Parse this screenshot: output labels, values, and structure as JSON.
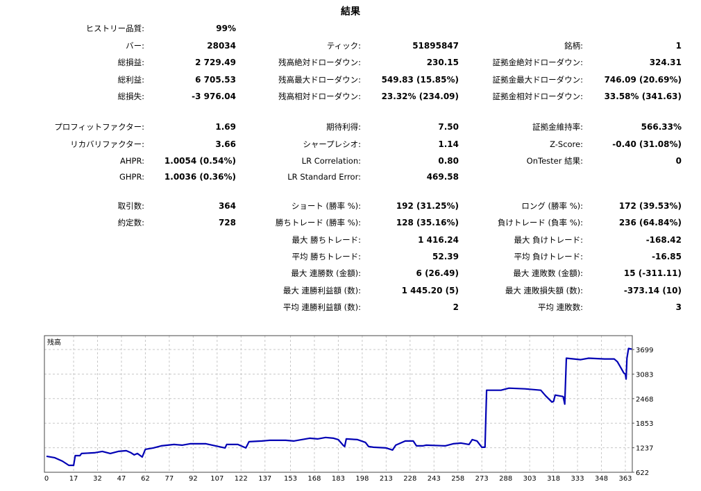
{
  "title": "結果",
  "stats": {
    "rows": [
      [
        [
          "ヒストリー品質:",
          "99%"
        ],
        null,
        null
      ],
      [
        [
          "バー:",
          "28034"
        ],
        [
          "ティック:",
          "51895847"
        ],
        [
          "銘柄:",
          "1"
        ]
      ],
      [
        [
          "総損益:",
          "2 729.49"
        ],
        [
          "残高絶対ドローダウン:",
          "230.15"
        ],
        [
          "証拠金絶対ドローダウン:",
          "324.31"
        ]
      ],
      [
        [
          "総利益:",
          "6 705.53"
        ],
        [
          "残高最大ドローダウン:",
          "549.83 (15.85%)"
        ],
        [
          "証拠金最大ドローダウン:",
          "746.09 (20.69%)"
        ]
      ],
      [
        [
          "総損失:",
          "-3 976.04"
        ],
        [
          "残高相対ドローダウン:",
          "23.32% (234.09)"
        ],
        [
          "証拠金相対ドローダウン:",
          "33.58% (341.63)"
        ]
      ],
      [
        [
          "プロフィットファクター:",
          "1.69"
        ],
        [
          "期待利得:",
          "7.50"
        ],
        [
          "証拠金維持率:",
          "566.33%"
        ]
      ],
      [
        [
          "リカバリファクター:",
          "3.66"
        ],
        [
          "シャープレシオ:",
          "1.14"
        ],
        [
          "Z-Score:",
          "-0.40 (31.08%)"
        ]
      ],
      [
        [
          "AHPR:",
          "1.0054 (0.54%)"
        ],
        [
          "LR Correlation:",
          "0.80"
        ],
        [
          "OnTester 結果:",
          "0"
        ]
      ],
      [
        [
          "GHPR:",
          "1.0036 (0.36%)"
        ],
        [
          "LR Standard Error:",
          "469.58"
        ],
        null
      ],
      [
        [
          "取引数:",
          "364"
        ],
        [
          "ショート (勝率 %):",
          "192 (31.25%)"
        ],
        [
          "ロング (勝率 %):",
          "172 (39.53%)"
        ]
      ],
      [
        [
          "約定数:",
          "728"
        ],
        [
          "勝ちトレード (勝率 %):",
          "128 (35.16%)"
        ],
        [
          "負けトレード (負率 %):",
          "236 (64.84%)"
        ]
      ],
      [
        null,
        [
          "最大 勝ちトレード:",
          "1 416.24"
        ],
        [
          "最大 負けトレード:",
          "-168.42"
        ]
      ],
      [
        null,
        [
          "平均 勝ちトレード:",
          "52.39"
        ],
        [
          "平均 負けトレード:",
          "-16.85"
        ]
      ],
      [
        null,
        [
          "最大 連勝数 (金額):",
          "6 (26.49)"
        ],
        [
          "最大 連敗数 (金額):",
          "15 (-311.11)"
        ]
      ],
      [
        null,
        [
          "最大 連勝利益額 (数):",
          "1 445.20 (5)"
        ],
        [
          "最大 連敗損失額 (数):",
          "-373.14 (10)"
        ]
      ],
      [
        null,
        [
          "平均 連勝利益額 (数):",
          "2"
        ],
        [
          "平均 連敗数:",
          "3"
        ]
      ]
    ]
  },
  "chart_data": {
    "type": "line",
    "title": "残高",
    "series": [
      {
        "color": "#0000b4",
        "points": [
          [
            0,
            1023
          ],
          [
            5,
            988
          ],
          [
            10,
            901
          ],
          [
            14,
            796
          ],
          [
            17,
            796
          ],
          [
            18,
            1040
          ],
          [
            21,
            1040
          ],
          [
            22,
            1093
          ],
          [
            30,
            1110
          ],
          [
            35,
            1145
          ],
          [
            40,
            1093
          ],
          [
            45,
            1145
          ],
          [
            50,
            1162
          ],
          [
            53,
            1110
          ],
          [
            55,
            1058
          ],
          [
            57,
            1093
          ],
          [
            60,
            1005
          ],
          [
            62,
            1197
          ],
          [
            67,
            1232
          ],
          [
            72,
            1284
          ],
          [
            80,
            1319
          ],
          [
            85,
            1302
          ],
          [
            90,
            1337
          ],
          [
            100,
            1337
          ],
          [
            108,
            1267
          ],
          [
            112,
            1232
          ],
          [
            113,
            1319
          ],
          [
            120,
            1319
          ],
          [
            122,
            1284
          ],
          [
            125,
            1232
          ],
          [
            127,
            1389
          ],
          [
            135,
            1406
          ],
          [
            140,
            1424
          ],
          [
            150,
            1424
          ],
          [
            155,
            1406
          ],
          [
            160,
            1441
          ],
          [
            165,
            1476
          ],
          [
            170,
            1459
          ],
          [
            175,
            1494
          ],
          [
            180,
            1476
          ],
          [
            183,
            1441
          ],
          [
            186,
            1302
          ],
          [
            187,
            1267
          ],
          [
            188,
            1459
          ],
          [
            195,
            1441
          ],
          [
            200,
            1372
          ],
          [
            202,
            1267
          ],
          [
            205,
            1249
          ],
          [
            213,
            1232
          ],
          [
            217,
            1180
          ],
          [
            219,
            1302
          ],
          [
            225,
            1406
          ],
          [
            230,
            1406
          ],
          [
            232,
            1284
          ],
          [
            236,
            1284
          ],
          [
            238,
            1302
          ],
          [
            250,
            1284
          ],
          [
            255,
            1337
          ],
          [
            260,
            1354
          ],
          [
            265,
            1319
          ],
          [
            267,
            1441
          ],
          [
            270,
            1406
          ],
          [
            273,
            1249
          ],
          [
            275,
            1249
          ],
          [
            276,
            2679
          ],
          [
            285,
            2679
          ],
          [
            290,
            2731
          ],
          [
            300,
            2714
          ],
          [
            310,
            2679
          ],
          [
            313,
            2539
          ],
          [
            317,
            2382
          ],
          [
            318,
            2400
          ],
          [
            319,
            2557
          ],
          [
            324,
            2520
          ],
          [
            325,
            2330
          ],
          [
            326,
            3481
          ],
          [
            335,
            3446
          ],
          [
            340,
            3481
          ],
          [
            350,
            3463
          ],
          [
            356,
            3463
          ],
          [
            358,
            3393
          ],
          [
            360,
            3254
          ],
          [
            362,
            3114
          ],
          [
            363,
            3080
          ],
          [
            363.5,
            2958
          ],
          [
            364,
            3480
          ],
          [
            365,
            3725
          ],
          [
            367,
            3707
          ]
        ]
      }
    ],
    "x_ticks": [
      0,
      17,
      32,
      47,
      62,
      77,
      92,
      107,
      122,
      137,
      153,
      168,
      183,
      198,
      213,
      228,
      243,
      258,
      273,
      288,
      303,
      318,
      333,
      348,
      363
    ],
    "y_ticks": [
      622,
      1237,
      1853,
      2468,
      3083,
      3699
    ],
    "xlim": [
      0,
      367
    ],
    "ylim": [
      622,
      4047
    ],
    "grid": true,
    "grid_color": "#c8c8c8"
  }
}
